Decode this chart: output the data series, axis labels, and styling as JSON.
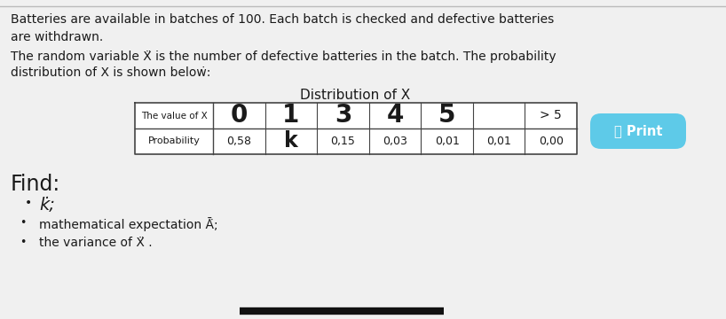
{
  "bg_color": "#f0f0f0",
  "para1": "Batteries are available in batches of 100. Each batch is checked and defective batteries\nare withdrawn.",
  "para2_line1": "The random variable Ẍ is the number of defective batteries in the batch. The probability",
  "para2_line2": "distribution of X is shown beloẇ:",
  "table_title": "Distribution of X",
  "table_header_row1_label": "The value of X",
  "table_row1_vals": [
    "0",
    "1",
    "3",
    "4",
    "5",
    "",
    "> 5"
  ],
  "table_header_row2_label": "Probability",
  "table_row2_vals": [
    "0,58",
    "k",
    "0,15",
    "0,03",
    "0,01",
    "0,01",
    "0,00"
  ],
  "find_title": "Find:",
  "bullet1": "k̇;",
  "bullet2": "mathematical expectation Ā̈;",
  "bullet3": "the variance of Ẍ .",
  "print_button_text": "⎙ Print",
  "print_button_color": "#5ecae8",
  "print_button_text_color": "#ffffff",
  "font_color": "#1a1a1a",
  "table_border_color": "#444444",
  "bottom_bar_color": "#111111",
  "top_border_color": "#bbbbbb"
}
